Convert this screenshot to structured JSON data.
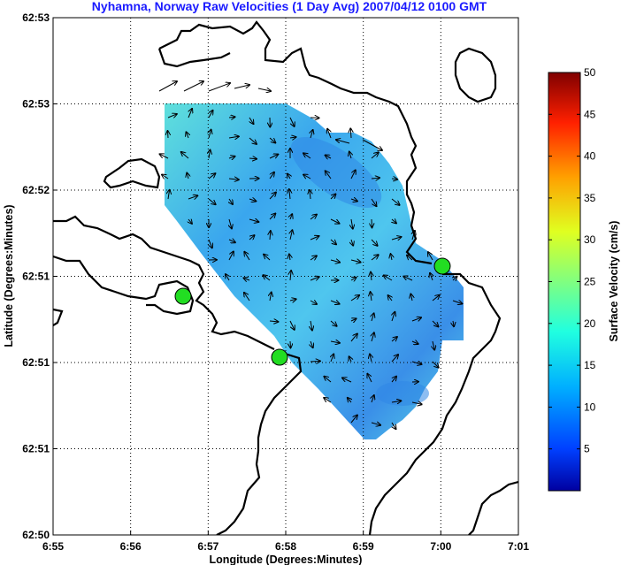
{
  "chart_data": {
    "type": "map",
    "title": "Nyhamna, Norway Raw Velocities (1 Day Avg) 2007/04/12 0100 GMT",
    "xlabel": "Longitude (Degrees:Minutes)",
    "ylabel": "Latitude (Degrees:Minutes)",
    "x_ticks": [
      "6:55",
      "6:56",
      "6:57",
      "6:58",
      "6:59",
      "7:00",
      "7:01"
    ],
    "y_ticks": [
      "62:53",
      "62:53",
      "62:52",
      "62:51",
      "62:51",
      "62:51",
      "62:50"
    ],
    "colorbar": {
      "label": "Surface Velocity (cm/s)",
      "ticks": [
        5,
        10,
        15,
        20,
        25,
        30,
        35,
        40,
        45,
        50
      ],
      "range": [
        0,
        50
      ],
      "colormap": [
        "#0000a0",
        "#0040ff",
        "#00a0ff",
        "#20ffe0",
        "#80ff80",
        "#e0ff20",
        "#ffa000",
        "#ff2000",
        "#800000"
      ]
    },
    "grid": true,
    "stations": 3,
    "station_color": "#22dd22",
    "field_color_range": [
      "#2a7fe6",
      "#6ae6d8"
    ],
    "coastline_color": "#000000"
  }
}
